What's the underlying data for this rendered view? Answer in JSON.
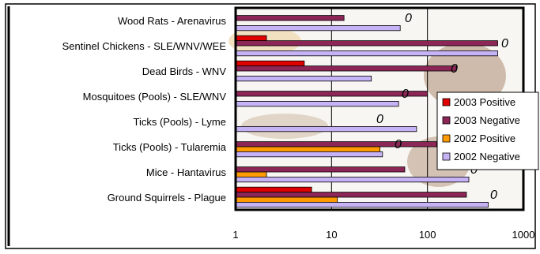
{
  "colors": {
    "2003 Positive": "#e00000",
    "2003 Negative": "#8c2656",
    "2002 Positive": "#ff9a00",
    "2002 Negative": "#c6b3f5",
    "bar_outline": "#000000",
    "background_tint": "#efe7de"
  },
  "chart_data": {
    "type": "bar",
    "orientation": "horizontal",
    "x_scale": "log",
    "xlim": [
      1,
      1000
    ],
    "x_ticks": [
      "1",
      "10",
      "100",
      "1000"
    ],
    "grid": "vertical lines at 10 and 100",
    "legend_position": "right",
    "legend": [
      "2003 Positive",
      "2003 Negative",
      "2002 Positive",
      "2002 Negative"
    ],
    "categories": [
      "Wood Rats - Arenavirus",
      "Sentinel Chickens - SLE/WNV/WEE",
      "Dead Birds - WNV",
      "Mosquitoes (Pools) - SLE/WNV",
      "Ticks (Pools) - Lyme",
      "Ticks (Pools) - Tularemia",
      "Mice - Hantavirus",
      "Ground Squirrels - Plague"
    ],
    "series": [
      {
        "name": "2003 Positive",
        "values": [
          null,
          2.1,
          5.2,
          null,
          null,
          null,
          null,
          6.2
        ]
      },
      {
        "name": "2003 Negative",
        "values": [
          13.5,
          540,
          200,
          100,
          null,
          125,
          58,
          255
        ]
      },
      {
        "name": "2002 Positive",
        "values": [
          null,
          null,
          null,
          null,
          null,
          32,
          2.1,
          11.5
        ]
      },
      {
        "name": "2002 Negative",
        "values": [
          52,
          540,
          26,
          50,
          77,
          34,
          270,
          430
        ]
      }
    ],
    "zero_labels": [
      {
        "category": "Wood Rats - Arenavirus",
        "text": "0"
      },
      {
        "category": "Sentinel Chickens - SLE/WNV/WEE",
        "text": "0"
      },
      {
        "category": "Dead Birds - WNV",
        "text": "0"
      },
      {
        "category": "Mosquitoes (Pools) - SLE/WNV",
        "text": "0"
      },
      {
        "category": "Ticks (Pools) - Lyme",
        "text": "0"
      },
      {
        "category": "Ticks (Pools) - Tularemia",
        "text": "0"
      },
      {
        "category": "Mice - Hantavirus",
        "text": "0"
      },
      {
        "category": "Ground Squirrels - Plague",
        "text": "0"
      }
    ]
  }
}
